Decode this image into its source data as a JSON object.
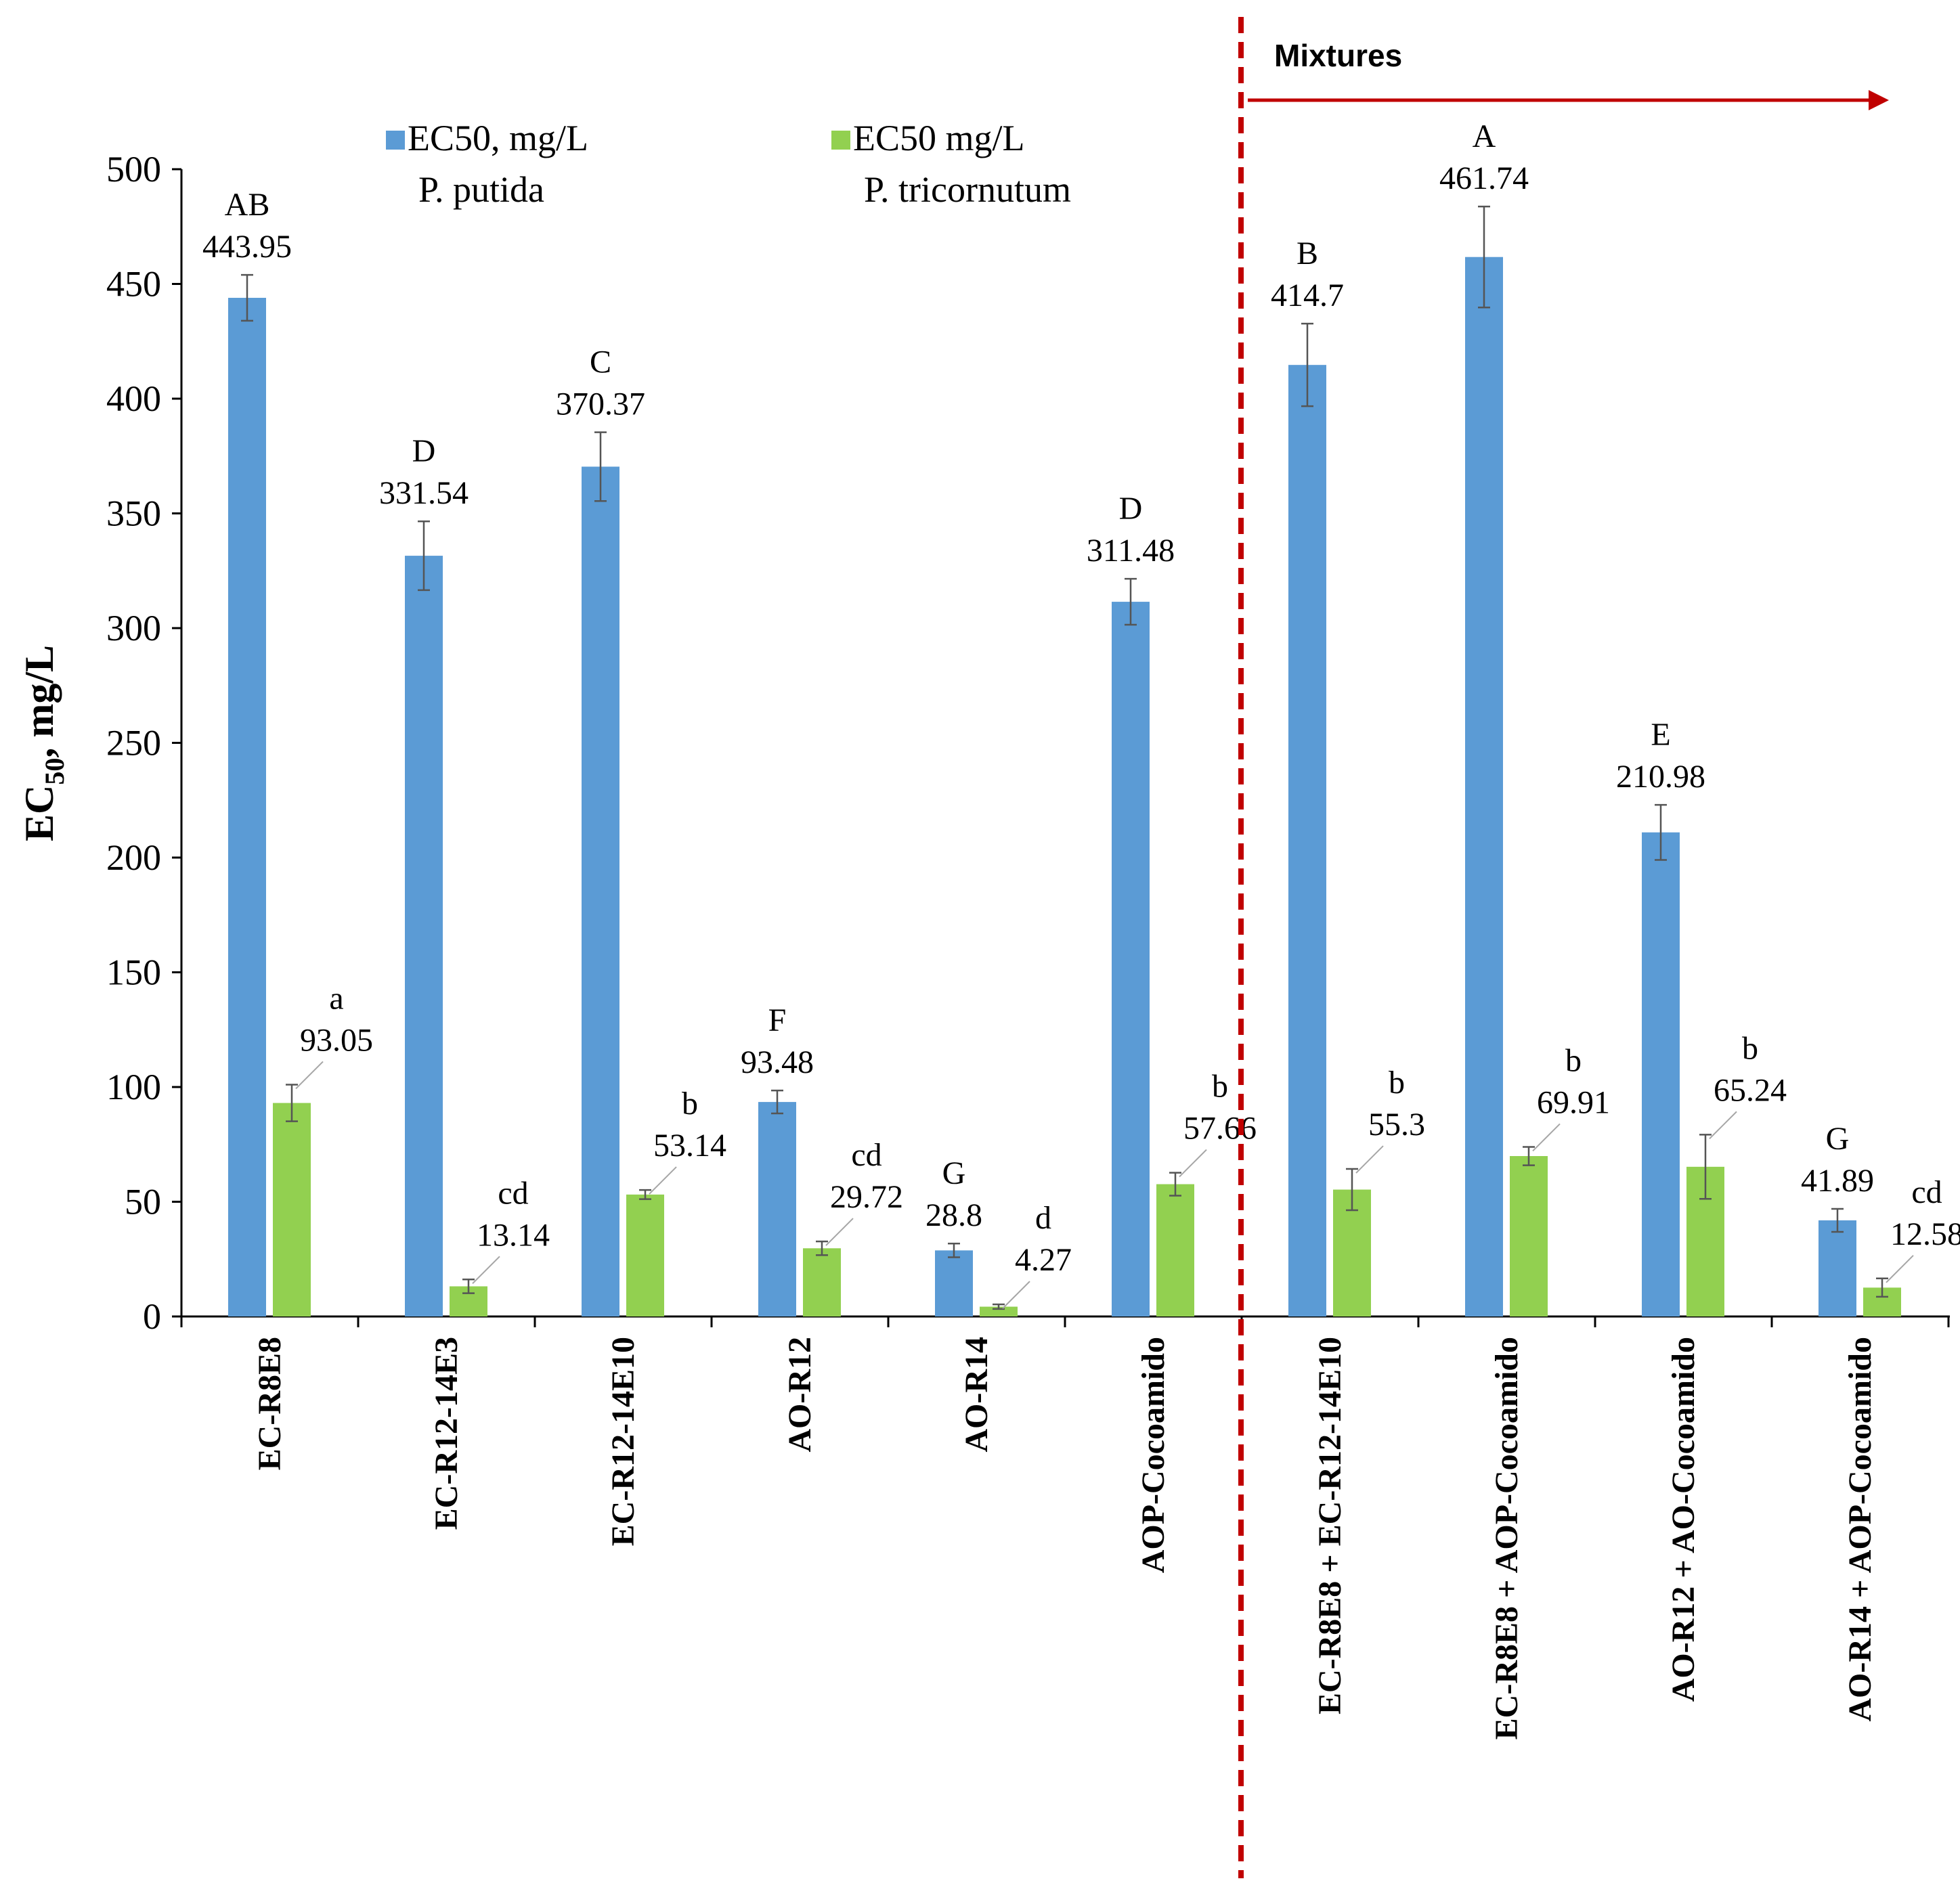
{
  "chart_data": {
    "type": "bar",
    "title": "",
    "xlabel": "",
    "ylabel": "EC",
    "ylabel_sub": "50",
    "ylabel_suffix": ", mg/L",
    "ylim": [
      0,
      500
    ],
    "yticks": [
      "0",
      "50",
      "100",
      "150",
      "200",
      "250",
      "300",
      "350",
      "400",
      "450",
      "500"
    ],
    "grid": false,
    "legend_position": "top",
    "categories": [
      "EC-R8E8",
      "EC-R12-14E3",
      "EC-R12-14E10",
      "AO-R12",
      "AO-R14",
      "AOP-Cocoamido",
      "EC-R8E8 + EC-R12-14E10",
      "EC-R8E8 + AOP-Cocoamido",
      "AO-R12 + AO-Cocoamido",
      "AO-R14 + AOP-Cocoamido"
    ],
    "series": [
      {
        "name": "EC50, mg/L",
        "name_line2": "P. putida",
        "color": "#5b9bd5",
        "values": [
          443.95,
          331.54,
          370.37,
          93.48,
          28.8,
          311.48,
          414.7,
          461.74,
          210.98,
          41.89
        ],
        "value_labels": [
          "443.95",
          "331.54",
          "370.37",
          "93.48",
          "28.8",
          "311.48",
          "414.7",
          "461.74",
          "210.98",
          "41.89"
        ],
        "letters": [
          "AB",
          "D",
          "C",
          "F",
          "G",
          "D",
          "B",
          "A",
          "E",
          "G"
        ],
        "errors": [
          10,
          15,
          15,
          5,
          3,
          10,
          18,
          22,
          12,
          5
        ]
      },
      {
        "name": "EC50 mg/L",
        "name_line2": "P. tricornutum",
        "color": "#92d050",
        "values": [
          93.05,
          13.14,
          53.14,
          29.72,
          4.27,
          57.66,
          55.3,
          69.91,
          65.24,
          12.58
        ],
        "value_labels": [
          "93.05",
          "13.14",
          "53.14",
          "29.72",
          "4.27",
          "57.66",
          "55.3",
          "69.91",
          "65.24",
          "12.58"
        ],
        "letters": [
          "a",
          "cd",
          "b",
          "cd",
          "d",
          "b",
          "b",
          "b",
          "b",
          "cd"
        ],
        "errors": [
          8,
          3,
          2,
          3,
          1,
          5,
          9,
          4,
          14,
          4
        ]
      }
    ],
    "annotation": {
      "text": "Mixtures",
      "line_color": "#c00000",
      "arrow_color": "#c00000"
    }
  }
}
